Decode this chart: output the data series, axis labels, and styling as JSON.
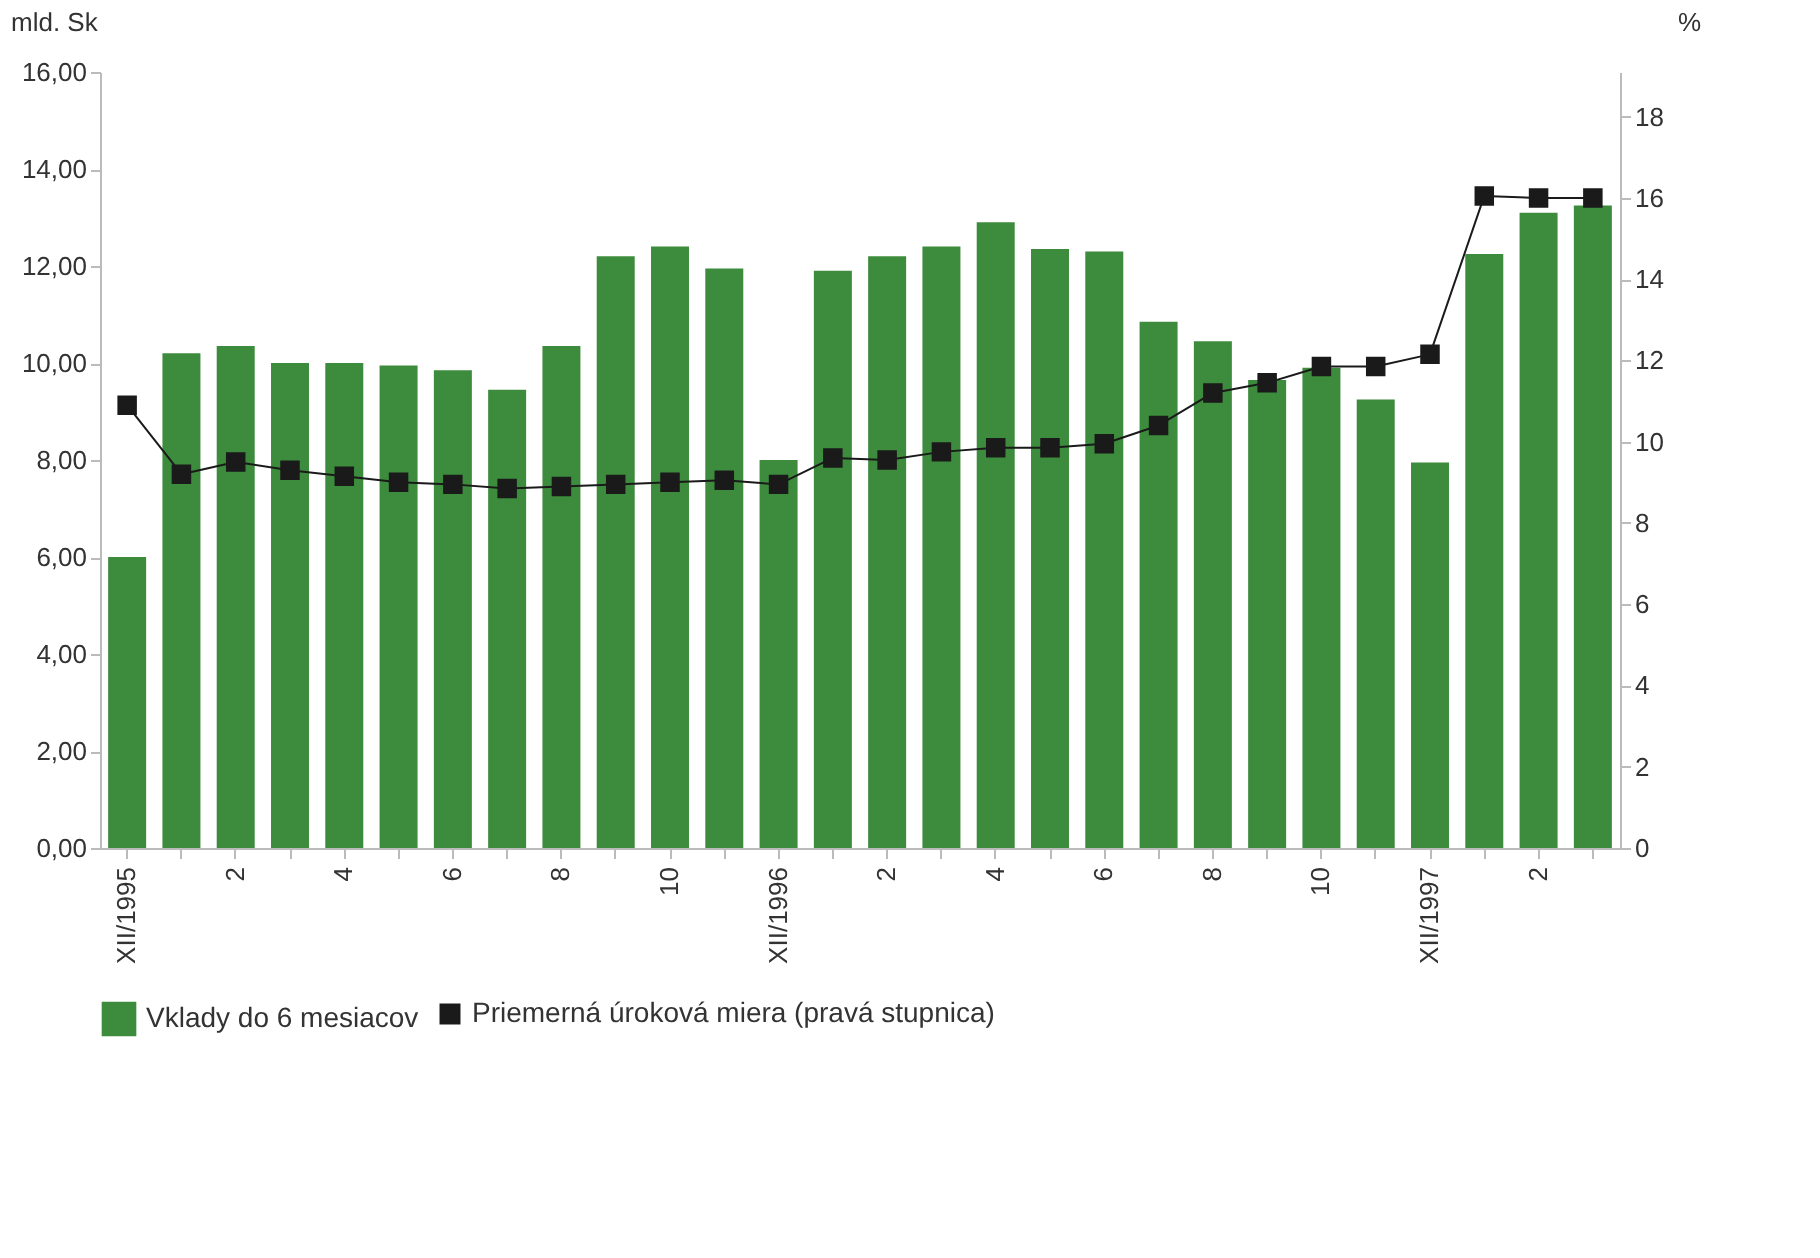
{
  "chart_data": {
    "type": "bar",
    "categories": [
      "XII/1995",
      null,
      "2",
      null,
      "4",
      null,
      "6",
      null,
      "8",
      null,
      "10",
      null,
      "XII/1996",
      null,
      "2",
      null,
      "4",
      null,
      "6",
      null,
      "8",
      null,
      "10",
      null,
      "XII/1997",
      null,
      "2",
      null
    ],
    "ylabel": "mld. Sk",
    "y2label": "%",
    "ylim": [
      0,
      16
    ],
    "yticks": [
      {
        "value": 0,
        "label": "0,00"
      },
      {
        "value": 2,
        "label": "2,00"
      },
      {
        "value": 4,
        "label": "4,00"
      },
      {
        "value": 6,
        "label": "6,00"
      },
      {
        "value": 8,
        "label": "8,00"
      },
      {
        "value": 10,
        "label": "10,00"
      },
      {
        "value": 12,
        "label": "12,00"
      },
      {
        "value": 14,
        "label": "14,00"
      },
      {
        "value": 16,
        "label": "16,00"
      }
    ],
    "y2lim": [
      0,
      19.1
    ],
    "y2ticks": [
      0,
      2,
      4,
      6,
      8,
      10,
      12,
      14,
      16,
      18
    ],
    "series": [
      {
        "name": "Vklady do 6 mesiacov",
        "color": "#3d8b3d",
        "values": [
          6.0,
          10.2,
          10.35,
          10.0,
          10.0,
          9.95,
          9.85,
          9.45,
          10.35,
          12.2,
          12.4,
          11.95,
          8.0,
          11.9,
          12.2,
          12.4,
          12.9,
          12.35,
          12.3,
          10.85,
          10.45,
          9.65,
          9.9,
          9.25,
          7.95,
          12.25,
          13.1,
          13.25
        ]
      },
      {
        "name": "Priemerná úroková miera (pravá stupnica)",
        "type": "line",
        "axis": "y2",
        "color": "#1a1a1a",
        "marker": "square",
        "line_style": "solid",
        "values": [
          10.9,
          9.2,
          9.5,
          9.3,
          9.15,
          9.0,
          8.95,
          8.85,
          8.9,
          8.95,
          9.0,
          9.05,
          8.95,
          9.6,
          9.55,
          9.75,
          9.85,
          9.85,
          9.95,
          10.4,
          11.2,
          11.45,
          11.85,
          11.85,
          12.15,
          16.05,
          16.0,
          16.0
        ]
      }
    ],
    "legend": "bottom",
    "grid": false
  }
}
